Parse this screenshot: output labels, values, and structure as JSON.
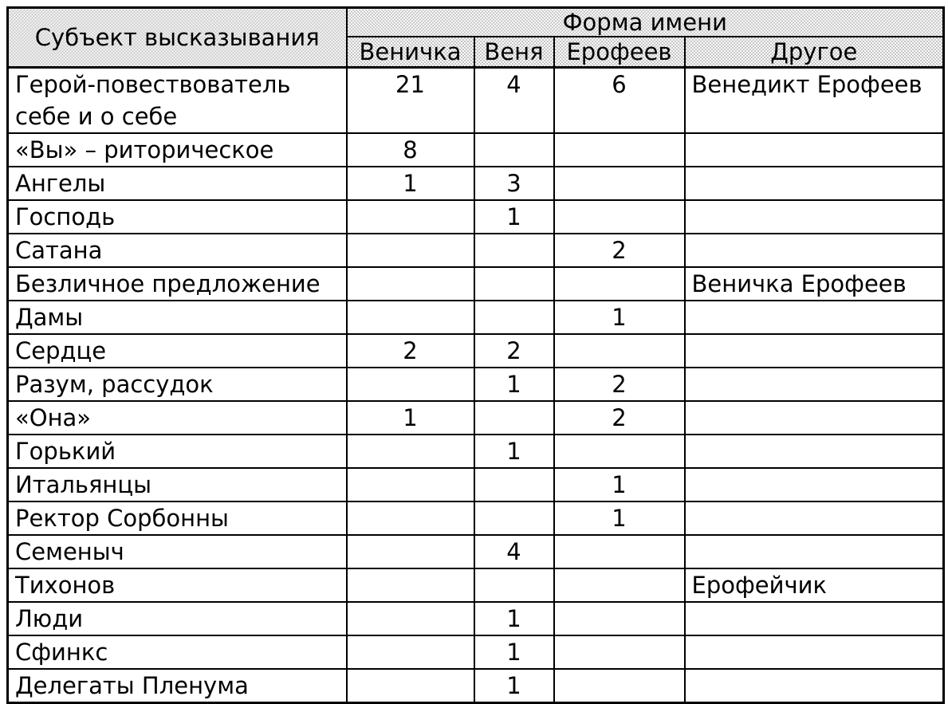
{
  "table": {
    "header": {
      "subject_column": "Субъект высказывания",
      "group_title": "Форма имени",
      "columns": [
        "Веничка",
        "Веня",
        "Ерофеев",
        "Другое"
      ]
    },
    "rows": [
      {
        "subject": "Герой-повествователь себе и о себе",
        "cells": [
          "21",
          "4",
          "6",
          "Венедикт Ерофеев"
        ]
      },
      {
        "subject": "«Вы» – риторическое",
        "cells": [
          "8",
          "",
          "",
          ""
        ]
      },
      {
        "subject": "Ангелы",
        "cells": [
          "1",
          "3",
          "",
          ""
        ]
      },
      {
        "subject": "Господь",
        "cells": [
          "",
          "1",
          "",
          ""
        ]
      },
      {
        "subject": "Сатана",
        "cells": [
          "",
          "",
          "2",
          ""
        ]
      },
      {
        "subject": "Безличное предложение",
        "cells": [
          "",
          "",
          "",
          "Веничка Ерофеев"
        ]
      },
      {
        "subject": "Дамы",
        "cells": [
          "",
          "",
          "1",
          ""
        ]
      },
      {
        "subject": "Сердце",
        "cells": [
          "2",
          "2",
          "",
          ""
        ]
      },
      {
        "subject": "Разум, рассудок",
        "cells": [
          "",
          "1",
          "2",
          ""
        ]
      },
      {
        "subject": "«Она»",
        "cells": [
          "1",
          "",
          "2",
          ""
        ]
      },
      {
        "subject": "Горький",
        "cells": [
          "",
          "1",
          "",
          ""
        ]
      },
      {
        "subject": "Итальянцы",
        "cells": [
          "",
          "",
          "1",
          ""
        ]
      },
      {
        "subject": "Ректор Сорбонны",
        "cells": [
          "",
          "",
          "1",
          ""
        ]
      },
      {
        "subject": "Семеныч",
        "cells": [
          "",
          "4",
          "",
          ""
        ]
      },
      {
        "subject": "Тихонов",
        "cells": [
          "",
          "",
          "",
          "Ерофейчик"
        ]
      },
      {
        "subject": "Люди",
        "cells": [
          "",
          "1",
          "",
          ""
        ]
      },
      {
        "subject": "Сфинкс",
        "cells": [
          "",
          "1",
          "",
          ""
        ]
      },
      {
        "subject": "Делегаты Пленума",
        "cells": [
          "",
          "1",
          "",
          ""
        ]
      }
    ]
  }
}
